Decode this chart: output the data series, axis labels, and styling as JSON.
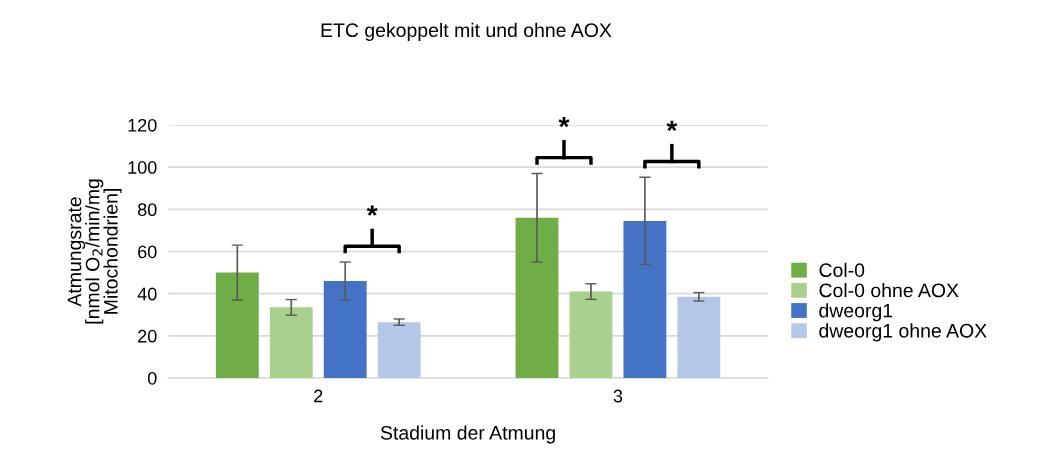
{
  "chart_data": {
    "type": "bar",
    "title": "ETC gekoppelt mit und ohne AOX",
    "xlabel": "Stadium der Atmung",
    "ylabel": "Atmungsrate\n[nmol O$_{2}$/min/mg\nMitochondrien]",
    "categories": [
      "2",
      "3"
    ],
    "series": [
      {
        "name": "Col-0",
        "color": "#70ad47",
        "values": [
          50,
          76
        ],
        "errors": [
          13,
          21
        ]
      },
      {
        "name": "Col-0 ohne AOX",
        "color": "#a9d18e",
        "values": [
          33.5,
          41
        ],
        "errors": [
          3.7,
          3.7
        ]
      },
      {
        "name": "dweorg1",
        "color": "#4472c4",
        "values": [
          46,
          74.5
        ],
        "errors": [
          9,
          20.7
        ]
      },
      {
        "name": "dweorg1 ohne AOX",
        "color": "#b4c7e7",
        "values": [
          26.5,
          38.5
        ],
        "errors": [
          1.5,
          2
        ]
      }
    ],
    "ylim": [
      0,
      120
    ],
    "yticks": [
      0,
      20,
      40,
      60,
      80,
      100,
      120
    ],
    "grid": "y",
    "legend": "right",
    "annotations": [
      "*",
      "*",
      "*"
    ]
  }
}
